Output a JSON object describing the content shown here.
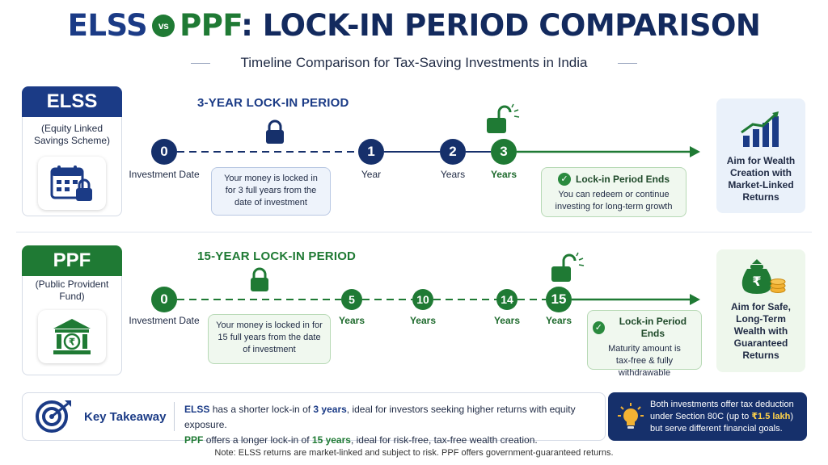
{
  "title": {
    "elss": "ELSS",
    "vs": "vs",
    "ppf": "PPF",
    "rest": ": LOCK-IN PERIOD COMPARISON"
  },
  "subtitle": "Timeline Comparison for Tax-Saving Investments in India",
  "elss": {
    "tag": "ELSS",
    "full_name": "(Equity Linked Savings Scheme)",
    "period_label": "3-YEAR LOCK-IN PERIOD",
    "nodes": [
      {
        "num": "0",
        "label": "Investment Date"
      },
      {
        "num": "1",
        "label": "Year"
      },
      {
        "num": "2",
        "label": "Years"
      },
      {
        "num": "3",
        "label": "Years"
      }
    ],
    "locked_text": "Your money is locked in for 3 full years from the date of investment",
    "ends_title": "Lock-in Period Ends",
    "ends_text": "You can redeem or continue investing for long-term growth",
    "aim": "Aim for Wealth Creation with Market-Linked Returns"
  },
  "ppf": {
    "tag": "PPF",
    "full_name": "(Public Provident Fund)",
    "period_label": "15-YEAR LOCK-IN PERIOD",
    "nodes": [
      {
        "num": "0",
        "label": "Investment Date"
      },
      {
        "num": "5",
        "label": "Years"
      },
      {
        "num": "10",
        "label": "Years"
      },
      {
        "num": "14",
        "label": "Years"
      },
      {
        "num": "15",
        "label": "Years"
      }
    ],
    "locked_text": "Your money is locked in for 15 full years from the date of investment",
    "ends_title": "Lock-in Period Ends",
    "ends_text": "Maturity amount is tax-free & fully withdrawable",
    "aim": "Aim for Safe, Long-Term Wealth with Guaranteed Returns"
  },
  "takeaway": {
    "label": "Key Takeaway",
    "elss_word": "ELSS",
    "line1_a": "has a shorter lock-in of",
    "elss_years": "3 years",
    "line1_b": ", ideal for investors seeking higher returns with equity exposure.",
    "ppf_word": "PPF",
    "line2_a": "offers a longer lock-in of",
    "ppf_years": "15 years",
    "line2_b": ", ideal for risk-free, tax-free wealth creation."
  },
  "note_box": {
    "pre": "Both investments offer tax deduction under Section 80C (up to",
    "highlight": "₹1.5 lakh",
    "post": ") but serve different financial goals."
  },
  "footnote": "Note: ELSS returns are market-linked and subject to risk. PPF offers government-guaranteed returns.",
  "colors": {
    "navy": "#16306b",
    "blue": "#1b3b86",
    "green": "#1f7a34",
    "gold": "#f2b233"
  },
  "icons": [
    "calendar-lock-icon",
    "bank-rupee-icon",
    "lock-icon",
    "unlock-icon",
    "growth-chart-icon",
    "money-bag-icon",
    "target-icon",
    "lightbulb-icon",
    "check-icon"
  ]
}
